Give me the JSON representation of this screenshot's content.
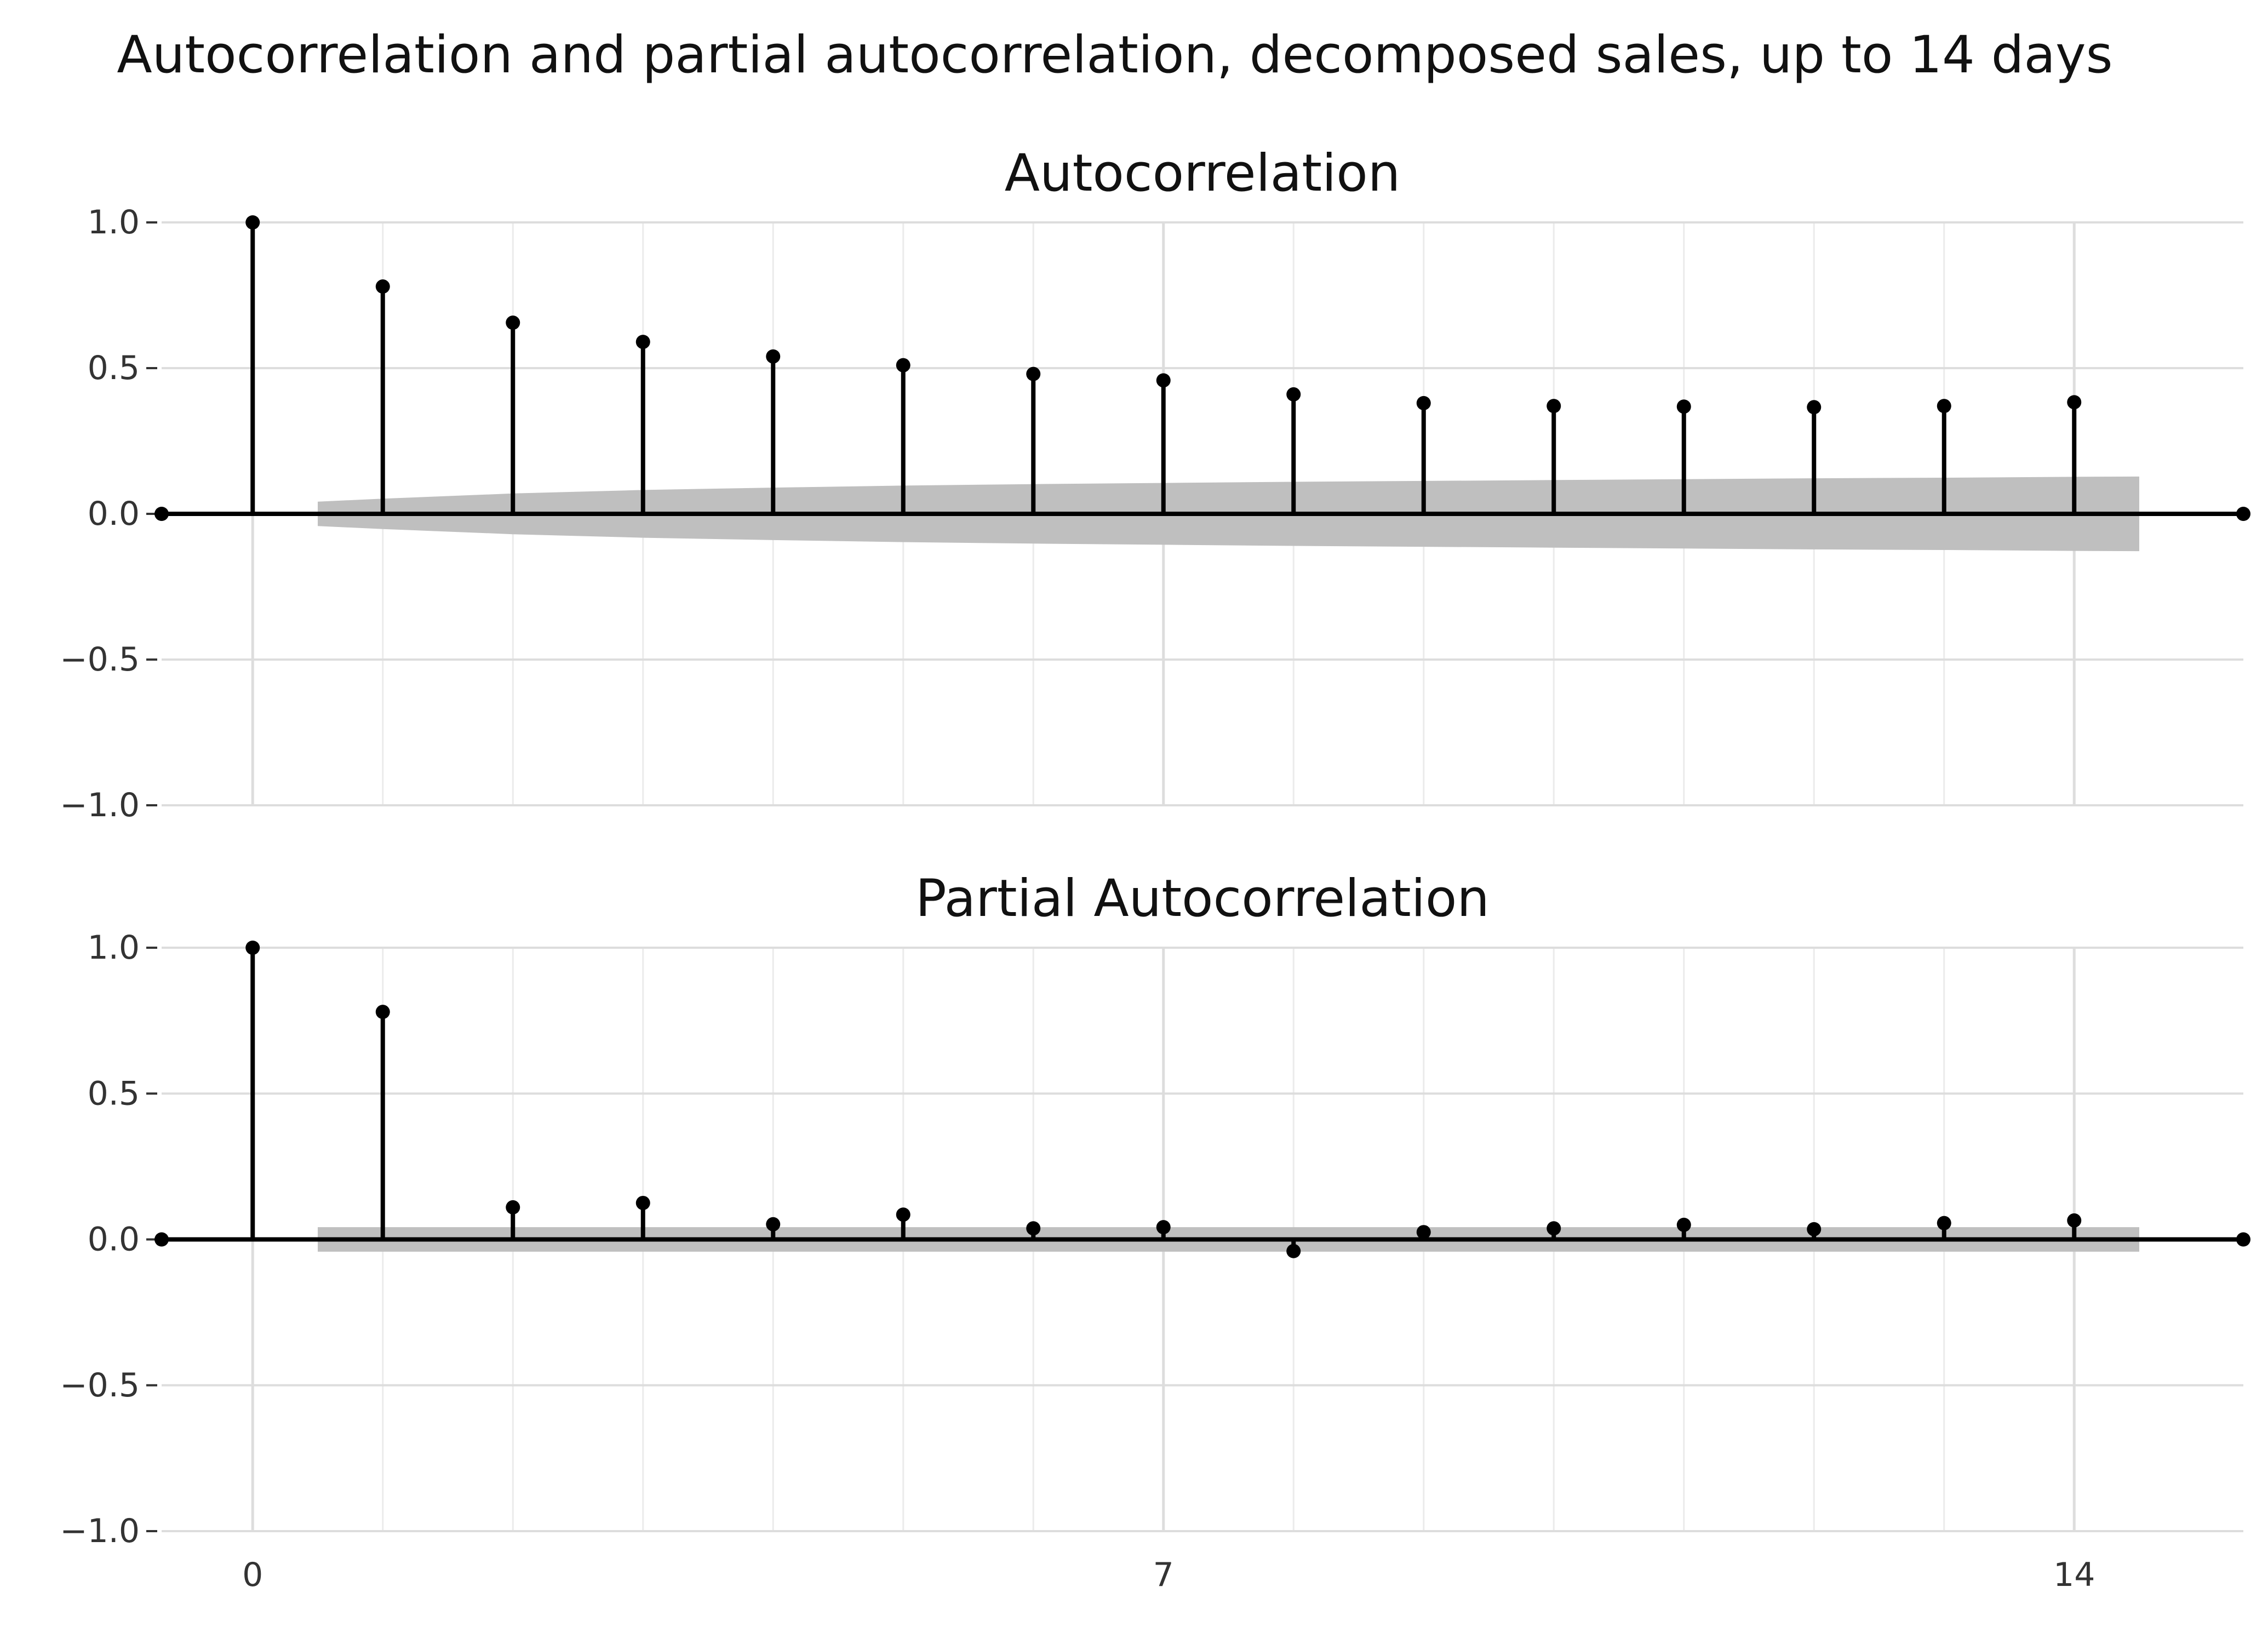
{
  "title": "Autocorrelation and partial autocorrelation, decomposed sales, up to 14 days",
  "colors": {
    "stem": "#000000",
    "confidence_band": "#bfbfbf",
    "grid_major": "#dddddd",
    "grid_minor": "#ebebeb",
    "background": "#ffffff"
  },
  "chart_data": [
    {
      "type": "stem",
      "title": "Autocorrelation",
      "xlabel": "",
      "ylabel": "",
      "xlim": [
        -0.7,
        15.3
      ],
      "ylim": [
        -1.0,
        1.0
      ],
      "grid": true,
      "x": [
        0,
        1,
        2,
        3,
        4,
        5,
        6,
        7,
        8,
        9,
        10,
        11,
        12,
        13,
        14
      ],
      "values": [
        1.0,
        0.78,
        0.656,
        0.59,
        0.54,
        0.51,
        0.48,
        0.458,
        0.41,
        0.38,
        0.37,
        0.368,
        0.366,
        0.37,
        0.383
      ],
      "confidence_band": {
        "x": [
          0.5,
          1,
          2,
          3,
          4,
          5,
          6,
          7,
          8,
          9,
          10,
          11,
          12,
          13,
          14,
          14.5
        ],
        "upper": [
          0.042,
          0.052,
          0.07,
          0.082,
          0.09,
          0.097,
          0.102,
          0.106,
          0.11,
          0.113,
          0.116,
          0.119,
          0.122,
          0.124,
          0.127,
          0.128
        ]
      },
      "x_ticks": [
        "0",
        "7",
        "14"
      ],
      "y_ticks": [
        "1.0",
        "0.5",
        "0.0",
        "−0.5",
        "−1.0"
      ]
    },
    {
      "type": "stem",
      "title": "Partial Autocorrelation",
      "xlabel": "",
      "ylabel": "",
      "xlim": [
        -0.7,
        15.3
      ],
      "ylim": [
        -1.0,
        1.0
      ],
      "grid": true,
      "x": [
        0,
        1,
        2,
        3,
        4,
        5,
        6,
        7,
        8,
        9,
        10,
        11,
        12,
        13,
        14
      ],
      "values": [
        1.0,
        0.78,
        0.11,
        0.125,
        0.052,
        0.085,
        0.038,
        0.042,
        -0.04,
        0.025,
        0.038,
        0.05,
        0.035,
        0.056,
        0.065
      ],
      "confidence_band": {
        "x": [
          0.5,
          14.5
        ],
        "upper": [
          0.042,
          0.042
        ]
      },
      "x_ticks": [
        "0",
        "7",
        "14"
      ],
      "y_ticks": [
        "1.0",
        "0.5",
        "0.0",
        "−0.5",
        "−1.0"
      ]
    }
  ]
}
